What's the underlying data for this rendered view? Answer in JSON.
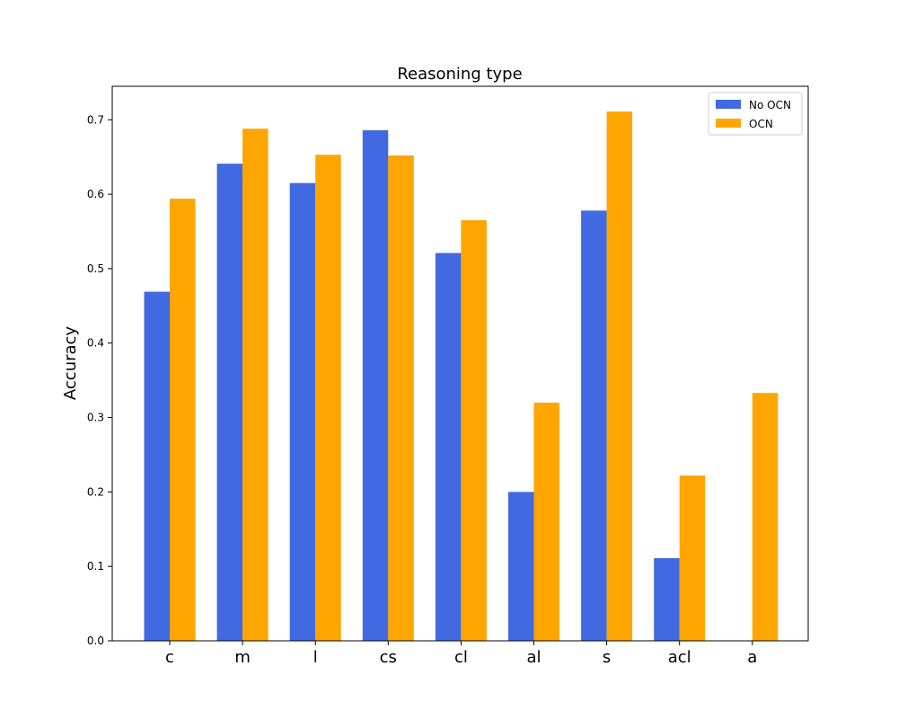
{
  "chart_data": {
    "type": "bar",
    "title": "Reasoning type",
    "xlabel": "",
    "ylabel": "Accuracy",
    "ylim": [
      0,
      0.745
    ],
    "yticks": [
      "0.0",
      "0.1",
      "0.2",
      "0.3",
      "0.4",
      "0.5",
      "0.6",
      "0.7"
    ],
    "categories": [
      "c",
      "m",
      "l",
      "cs",
      "cl",
      "al",
      "s",
      "acl",
      "a"
    ],
    "series": [
      {
        "name": "No OCN",
        "color": "#4169e1",
        "values": [
          0.469,
          0.641,
          0.615,
          0.686,
          0.521,
          0.2,
          0.578,
          0.111,
          0.0
        ]
      },
      {
        "name": "OCN",
        "color": "#ffa500",
        "values": [
          0.594,
          0.688,
          0.653,
          0.652,
          0.565,
          0.32,
          0.711,
          0.222,
          0.333
        ]
      }
    ],
    "legend": "top-right",
    "grid": false
  }
}
